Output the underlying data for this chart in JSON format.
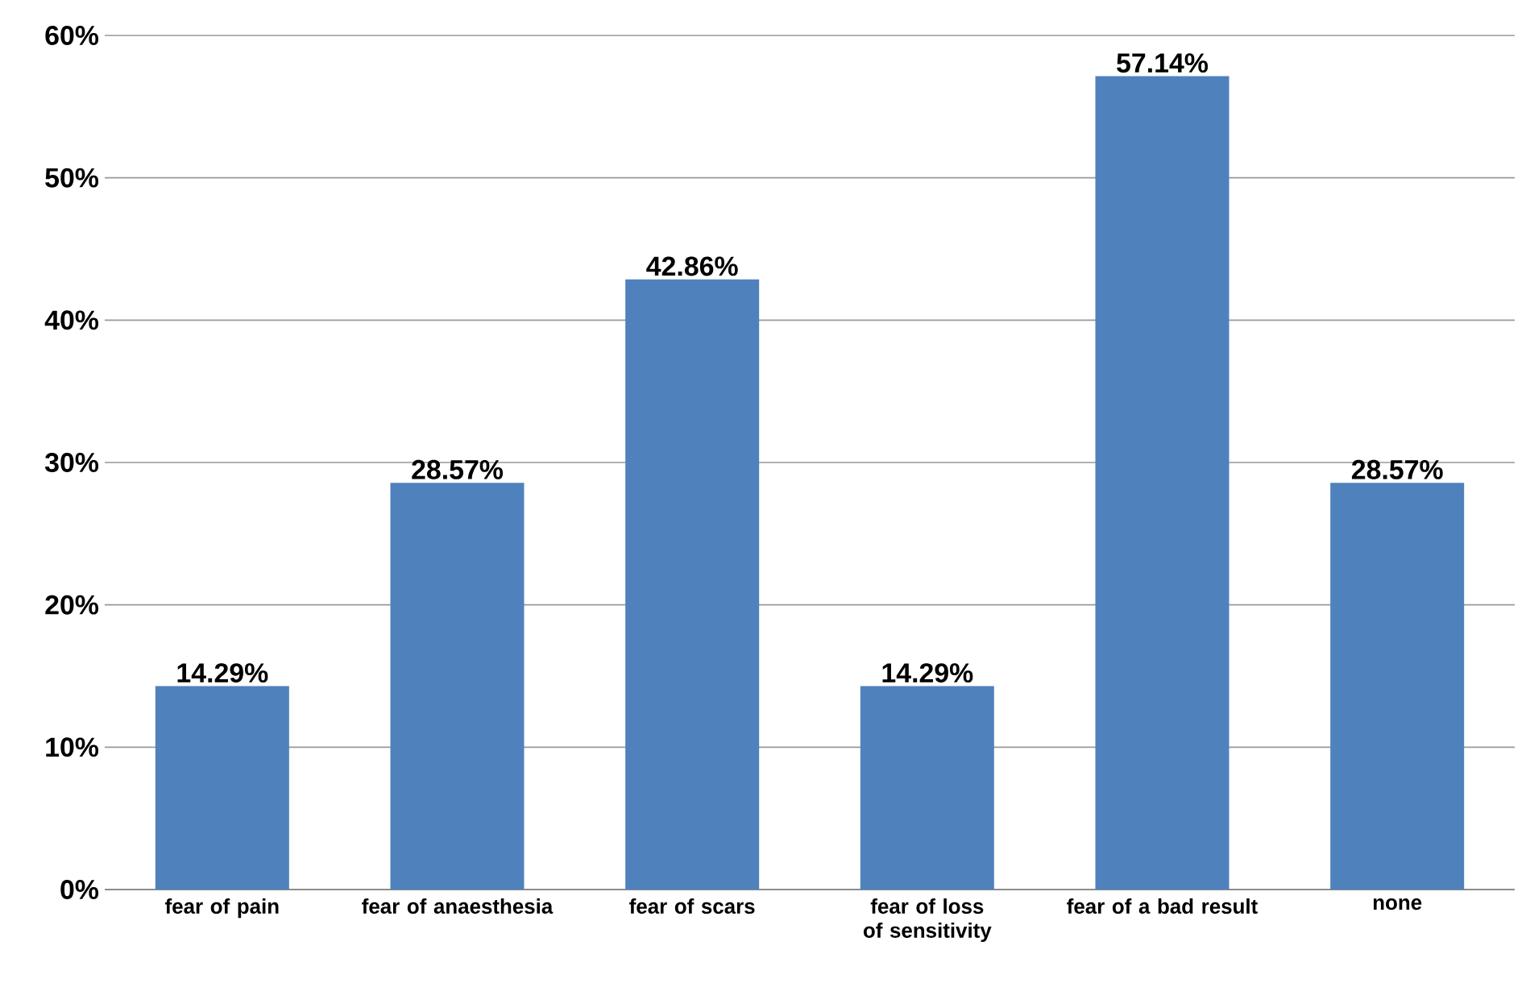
{
  "chart_data": {
    "type": "bar",
    "categories": [
      "fear of pain",
      "fear of anaesthesia",
      "fear of scars",
      "fear of loss of sensitivity",
      "fear of a bad result",
      "none"
    ],
    "values": [
      14.29,
      28.57,
      42.86,
      14.29,
      57.14,
      28.57
    ],
    "value_labels": [
      "14.29%",
      "28.57%",
      "42.86%",
      "14.29%",
      "57.14%",
      "28.57%"
    ],
    "color": "#4f81bd",
    "ylim": [
      0,
      60
    ],
    "yticks": [
      {
        "value": 0,
        "label": "0%"
      },
      {
        "value": 10,
        "label": "10%"
      },
      {
        "value": 20,
        "label": "20%"
      },
      {
        "value": 30,
        "label": "30%"
      },
      {
        "value": 40,
        "label": "40%"
      },
      {
        "value": 50,
        "label": "50%"
      },
      {
        "value": 60,
        "label": "60%"
      }
    ],
    "grid": "y"
  }
}
